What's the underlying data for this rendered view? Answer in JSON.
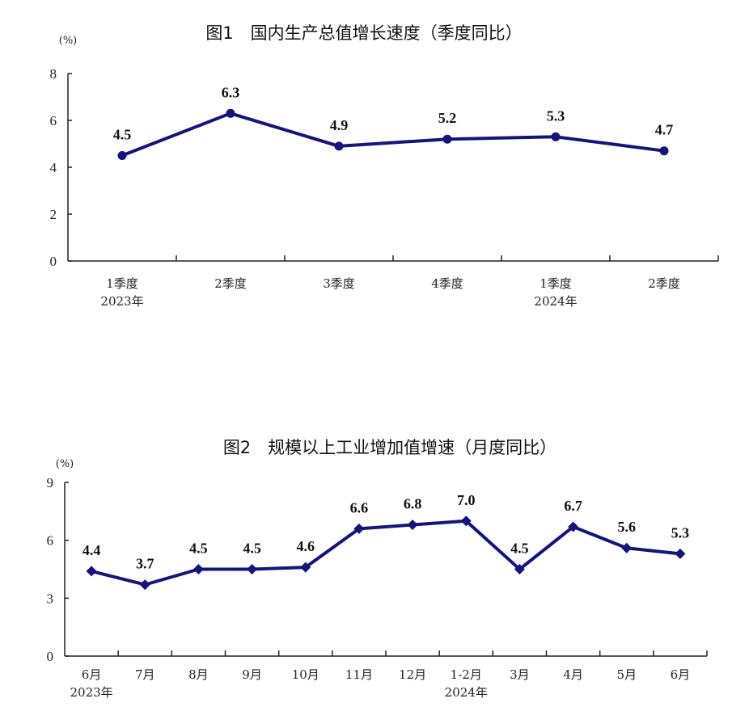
{
  "colors": {
    "series": "#14147a",
    "axis": "#222222",
    "text": "#111111"
  },
  "chart_data": [
    {
      "type": "line",
      "title": "图1　国内生产总值增长速度（季度同比）",
      "unit": "(%)",
      "categories": [
        [
          "1季度",
          "2023年"
        ],
        [
          "2季度",
          ""
        ],
        [
          "3季度",
          ""
        ],
        [
          "4季度",
          ""
        ],
        [
          "1季度",
          "2024年"
        ],
        [
          "2季度",
          ""
        ]
      ],
      "values": [
        4.5,
        6.3,
        4.9,
        5.2,
        5.3,
        4.7
      ],
      "data_labels": [
        "4.5",
        "6.3",
        "4.9",
        "5.2",
        "5.3",
        "4.7"
      ],
      "ylim": [
        0,
        8
      ],
      "yticks": [
        0,
        2,
        4,
        6,
        8
      ],
      "marker": "circle",
      "grid": false
    },
    {
      "type": "line",
      "title": "图2　规模以上工业增加值增速（月度同比）",
      "unit": "(%)",
      "categories": [
        [
          "6月",
          "2023年"
        ],
        [
          "7月",
          ""
        ],
        [
          "8月",
          ""
        ],
        [
          "9月",
          ""
        ],
        [
          "10月",
          ""
        ],
        [
          "11月",
          ""
        ],
        [
          "12月",
          ""
        ],
        [
          "1-2月",
          "2024年"
        ],
        [
          "3月",
          ""
        ],
        [
          "4月",
          ""
        ],
        [
          "5月",
          ""
        ],
        [
          "6月",
          ""
        ]
      ],
      "values": [
        4.4,
        3.7,
        4.5,
        4.5,
        4.6,
        6.6,
        6.8,
        7.0,
        4.5,
        6.7,
        5.6,
        5.3
      ],
      "data_labels": [
        "4.4",
        "3.7",
        "4.5",
        "4.5",
        "4.6",
        "6.6",
        "6.8",
        "7.0",
        "4.5",
        "6.7",
        "5.6",
        "5.3"
      ],
      "ylim": [
        0,
        9
      ],
      "yticks": [
        0,
        3,
        6,
        9
      ],
      "marker": "diamond",
      "grid": false
    }
  ]
}
